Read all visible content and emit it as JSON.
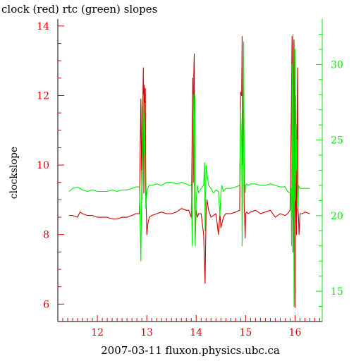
{
  "chart_data": {
    "type": "line",
    "title": "clock (red) rtc (green) slopes",
    "xlabel": "2007-03-11 fluxon.physics.ubc.ca",
    "ylabel_left": "clockslope",
    "ylabel_right": "",
    "xlim": [
      11.2,
      16.55
    ],
    "ylim_left": [
      5.5,
      14.2
    ],
    "ylim_right": [
      13,
      33
    ],
    "x_ticks": [
      12,
      13,
      14,
      15,
      16
    ],
    "x_tick_labels": [
      "12",
      "13",
      "14",
      "15",
      "16"
    ],
    "y_left_ticks": [
      6,
      8,
      10,
      12,
      14
    ],
    "y_left_tick_labels": [
      "6",
      "8",
      "10",
      "12",
      "14"
    ],
    "y_right_ticks": [
      15,
      20,
      25,
      30
    ],
    "y_right_tick_labels": [
      "15",
      "20",
      "25",
      "30"
    ],
    "grid": false,
    "colors": {
      "left_axis": "#dd0000",
      "right_axis": "#00ee00",
      "frame": "#000000"
    },
    "series": [
      {
        "name": "clock",
        "color": "#cc0000",
        "axis": "left",
        "x": [
          11.43,
          11.5,
          11.6,
          11.65,
          11.7,
          11.8,
          11.9,
          12.0,
          12.1,
          12.2,
          12.3,
          12.4,
          12.5,
          12.6,
          12.7,
          12.78,
          12.85,
          12.88,
          12.9,
          12.91,
          12.92,
          12.93,
          12.94,
          12.95,
          12.96,
          12.97,
          12.98,
          12.99,
          13.0,
          13.02,
          13.05,
          13.1,
          13.2,
          13.3,
          13.4,
          13.5,
          13.6,
          13.7,
          13.8,
          13.85,
          13.9,
          13.93,
          13.94,
          13.95,
          13.96,
          13.97,
          13.98,
          13.99,
          14.0,
          14.02,
          14.05,
          14.1,
          14.15,
          14.18,
          14.2,
          14.22,
          14.25,
          14.3,
          14.4,
          14.45,
          14.48,
          14.5,
          14.55,
          14.6,
          14.7,
          14.8,
          14.88,
          14.9,
          14.92,
          14.93,
          14.94,
          14.95,
          14.96,
          14.97,
          14.98,
          14.99,
          15.0,
          15.02,
          15.05,
          15.1,
          15.2,
          15.3,
          15.4,
          15.5,
          15.6,
          15.7,
          15.8,
          15.85,
          15.9,
          15.92,
          15.94,
          15.96,
          15.98,
          16.0,
          16.01,
          16.02,
          16.03,
          16.04,
          16.05,
          16.06,
          16.07,
          16.08,
          16.1,
          16.15,
          16.2,
          16.3
        ],
        "y": [
          8.55,
          8.55,
          8.5,
          8.65,
          8.6,
          8.55,
          8.55,
          8.5,
          8.5,
          8.5,
          8.45,
          8.45,
          8.5,
          8.5,
          8.55,
          8.6,
          8.6,
          11.9,
          9.0,
          11.6,
          11.9,
          12.8,
          9.2,
          12.3,
          11.8,
          12.2,
          9.5,
          8.7,
          8.0,
          8.3,
          8.5,
          8.55,
          8.6,
          8.65,
          8.6,
          8.6,
          8.65,
          8.75,
          8.7,
          8.7,
          8.5,
          12.5,
          9.5,
          12.6,
          13.2,
          8.8,
          7.9,
          8.4,
          8.7,
          8.5,
          8.6,
          8.6,
          8.0,
          6.6,
          8.7,
          9.0,
          8.7,
          8.5,
          8.6,
          8.0,
          8.6,
          8.2,
          8.5,
          8.6,
          8.6,
          8.65,
          8.7,
          12.1,
          12.0,
          13.7,
          10.0,
          11.5,
          12.2,
          8.8,
          8.5,
          7.9,
          8.6,
          8.65,
          8.6,
          8.65,
          8.7,
          8.6,
          8.65,
          8.7,
          8.5,
          8.6,
          8.55,
          8.6,
          8.7,
          10.8,
          13.7,
          7.5,
          13.6,
          5.9,
          12.0,
          8.8,
          8.0,
          11.5,
          12.8,
          8.7,
          8.5,
          8.0,
          8.6,
          8.6,
          8.65,
          8.6
        ]
      },
      {
        "name": "rtc",
        "color": "#00ee00",
        "axis": "right",
        "x": [
          11.43,
          11.5,
          11.6,
          11.7,
          11.8,
          11.9,
          12.0,
          12.1,
          12.2,
          12.3,
          12.4,
          12.5,
          12.6,
          12.7,
          12.78,
          12.85,
          12.88,
          12.9,
          12.91,
          12.92,
          12.93,
          12.94,
          12.95,
          12.96,
          12.97,
          12.98,
          12.99,
          13.0,
          13.02,
          13.05,
          13.1,
          13.2,
          13.3,
          13.4,
          13.5,
          13.6,
          13.7,
          13.8,
          13.85,
          13.9,
          13.92,
          13.94,
          13.95,
          13.96,
          13.97,
          13.98,
          14.0,
          14.02,
          14.05,
          14.1,
          14.15,
          14.17,
          14.18,
          14.2,
          14.25,
          14.3,
          14.35,
          14.4,
          14.45,
          14.48,
          14.5,
          14.52,
          14.55,
          14.6,
          14.7,
          14.8,
          14.88,
          14.9,
          14.92,
          14.93,
          14.95,
          14.96,
          14.97,
          14.98,
          14.99,
          15.0,
          15.02,
          15.05,
          15.1,
          15.2,
          15.3,
          15.4,
          15.5,
          15.6,
          15.7,
          15.8,
          15.85,
          15.9,
          15.92,
          15.93,
          15.94,
          15.95,
          15.96,
          15.97,
          15.98,
          16.0,
          16.01,
          16.02,
          16.03,
          16.04,
          16.05,
          16.06,
          16.07,
          16.1,
          16.15,
          16.2,
          16.3
        ],
        "y": [
          21.6,
          21.8,
          21.9,
          21.7,
          21.6,
          21.7,
          21.6,
          21.6,
          21.6,
          21.7,
          21.6,
          21.7,
          21.7,
          21.8,
          21.9,
          21.9,
          17.0,
          23.0,
          22.0,
          25.0,
          28.0,
          26.0,
          24.0,
          27.0,
          22.0,
          20.5,
          21.0,
          21.5,
          21.8,
          22.0,
          22.0,
          22.1,
          22.0,
          22.2,
          22.2,
          22.1,
          22.2,
          22.1,
          22.0,
          22.0,
          18.0,
          28.0,
          26.0,
          22.0,
          28.0,
          18.0,
          21.0,
          22.0,
          21.5,
          21.8,
          22.0,
          23.5,
          19.0,
          23.3,
          22.0,
          21.8,
          21.5,
          21.7,
          21.6,
          20.0,
          21.5,
          22.0,
          21.6,
          21.8,
          21.8,
          21.9,
          22.0,
          27.0,
          25.0,
          18.0,
          26.0,
          31.5,
          24.0,
          22.0,
          21.5,
          22.0,
          22.1,
          22.0,
          22.1,
          22.1,
          22.0,
          22.0,
          22.1,
          22.0,
          21.9,
          21.9,
          21.6,
          21.5,
          21.8,
          18.0,
          30.0,
          20.0,
          32.0,
          25.0,
          14.0,
          31.0,
          21.0,
          26.0,
          23.0,
          25.0,
          21.5,
          20.5,
          22.0,
          21.8,
          21.8,
          21.8,
          21.8
        ]
      }
    ]
  }
}
